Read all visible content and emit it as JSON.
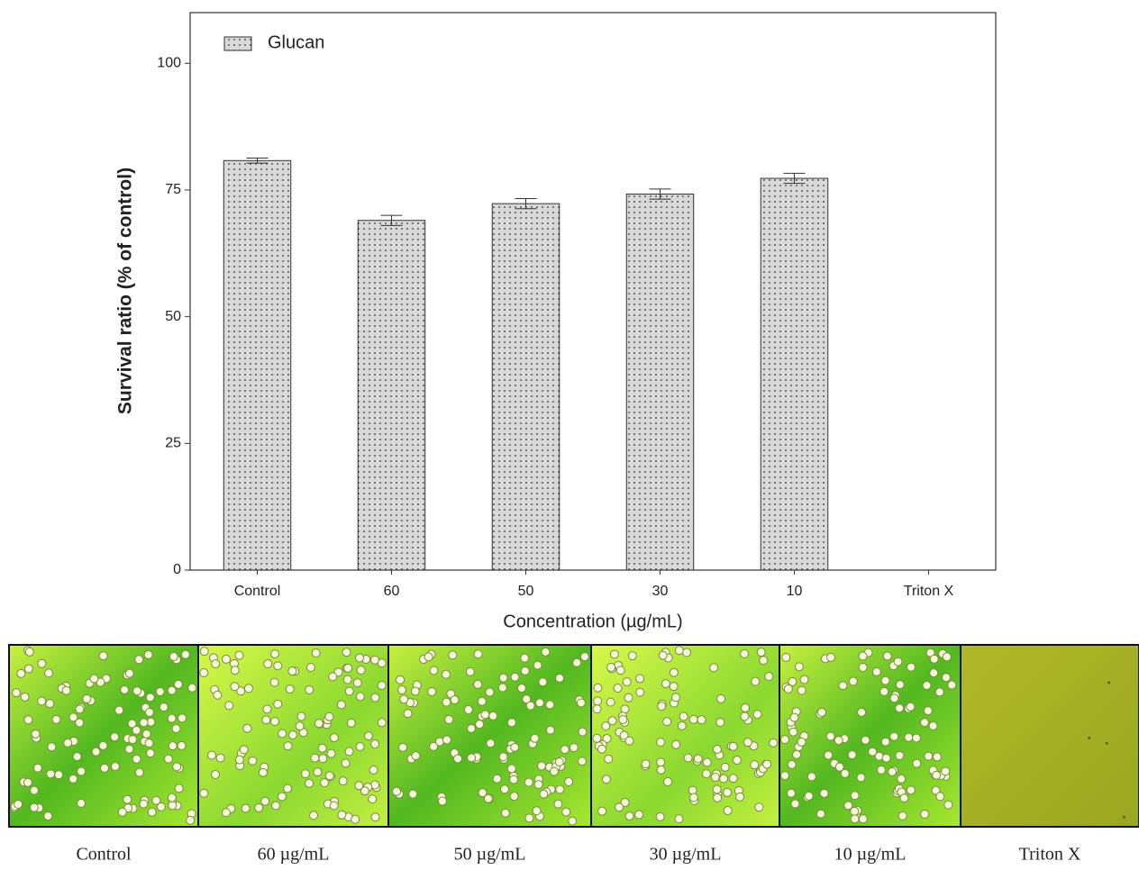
{
  "chart_data": {
    "type": "bar",
    "y_label": "Survival ratio (% of control)",
    "x_label": "Concentration (µg/mL)",
    "categories": [
      "Control",
      "60",
      "50",
      "30",
      "10",
      "Triton X"
    ],
    "series": [
      {
        "name": "Glucan",
        "color": "#d9d9d9",
        "values": [
          80.8,
          69.0,
          72.3,
          74.2,
          77.3,
          0
        ],
        "errors": [
          0.5,
          1.0,
          1.0,
          1.0,
          1.0,
          0
        ]
      }
    ],
    "ylim": [
      0,
      110
    ],
    "yticks": [
      0,
      25,
      50,
      75,
      100
    ],
    "grid": false,
    "legend": "top-left"
  },
  "images": {
    "captions": [
      "Control",
      "60 µg/mL",
      "50 µg/mL",
      "30 µg/mL",
      "10 µg/mL",
      "Triton X"
    ]
  }
}
